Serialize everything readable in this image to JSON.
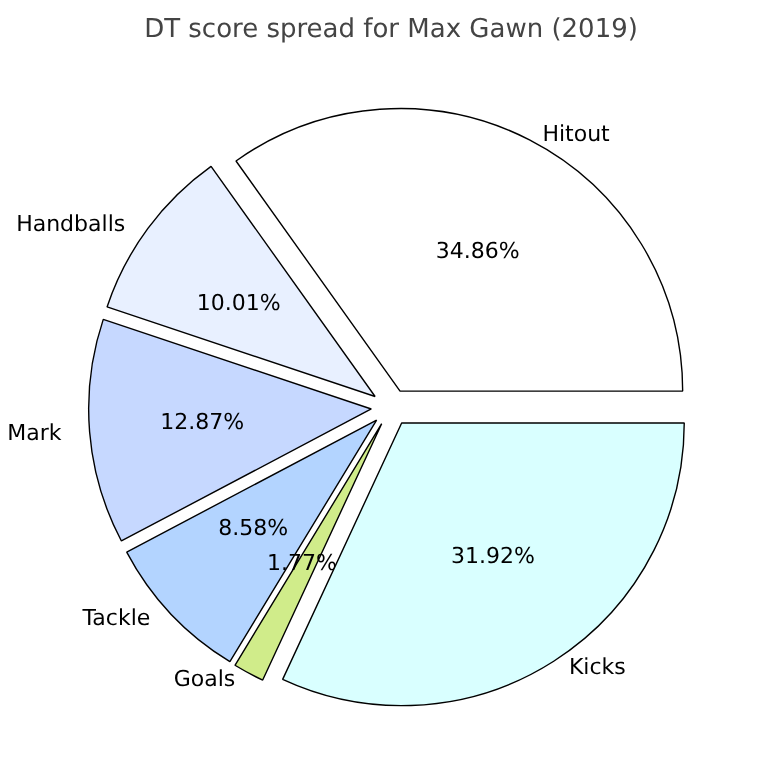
{
  "chart_data": {
    "type": "pie",
    "title": "DT score spread for Max Gawn (2019)",
    "categories": [
      "Hitout",
      "Handballs",
      "Mark",
      "Tackle",
      "Goals",
      "Kicks"
    ],
    "values": [
      34.86,
      10.01,
      12.87,
      8.58,
      1.77,
      31.92
    ],
    "value_labels": [
      "34.86%",
      "10.01%",
      "12.87%",
      "8.58%",
      "1.77%",
      "31.92%"
    ],
    "colors": [
      "#ffffff",
      "#e8f0ff",
      "#c6d8ff",
      "#b3d4ff",
      "#d0ec8a",
      "#d9ffff"
    ]
  }
}
